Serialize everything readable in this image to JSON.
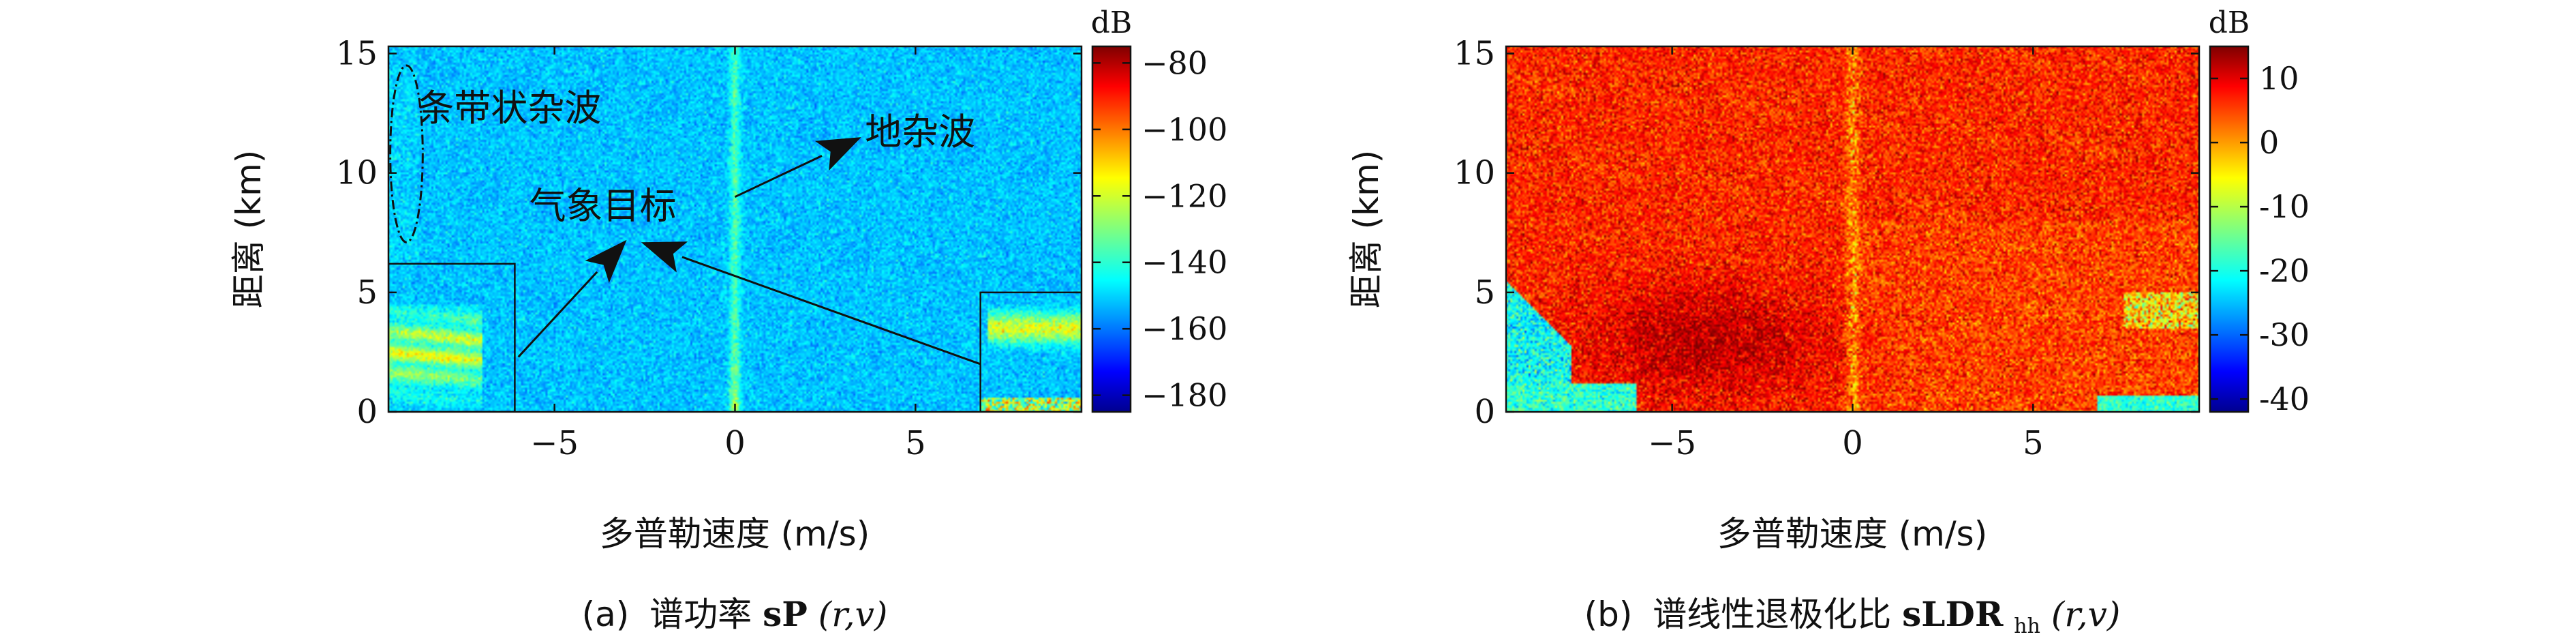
{
  "chart_data": [
    {
      "type": "heatmap",
      "panel_label": "(a)",
      "caption_prefix": "谱功率",
      "caption_symbol": "sP",
      "caption_args": "(r,v)",
      "xlabel": "多普勒速度 (m/s)",
      "ylabel": "距离 (km)",
      "xlim": [
        -9.6,
        9.6
      ],
      "ylim": [
        0,
        15.3
      ],
      "xticks": [
        -5,
        0,
        5
      ],
      "yticks": [
        0,
        5,
        10,
        15
      ],
      "colorbar": {
        "unit": "dB",
        "range": [
          -185,
          -75
        ],
        "ticks": [
          -80,
          -100,
          -120,
          -140,
          -160,
          -180
        ],
        "tick_labels": [
          "−80",
          "−100",
          "−120",
          "−140",
          "−160",
          "−180"
        ],
        "colormap": "jet"
      },
      "background_level_db": -150,
      "annotations": [
        {
          "text": "条带状杂波",
          "x": -8.8,
          "y": 12.7
        },
        {
          "text": "地杂波",
          "x": 3.6,
          "y": 11.7
        },
        {
          "text": "气象目标",
          "x": -5.7,
          "y": 8.6
        }
      ],
      "highlight_ellipse": {
        "cx": -9.1,
        "cy": 10.8,
        "rx": 0.45,
        "ry": 3.7
      },
      "highlight_boxes": [
        {
          "x0": -9.6,
          "x1": -6.1,
          "y0": 0,
          "y1": 6.2
        },
        {
          "x0": 6.8,
          "x1": 9.6,
          "y0": 0,
          "y1": 5.0
        }
      ],
      "arrows": [
        {
          "from": [
            0.0,
            9.0
          ],
          "to": [
            3.5,
            11.5
          ]
        },
        {
          "from": [
            -6.0,
            2.3
          ],
          "to": [
            -3.0,
            7.2
          ]
        },
        {
          "from": [
            6.8,
            2.0
          ],
          "to": [
            -2.6,
            7.1
          ]
        }
      ]
    },
    {
      "type": "heatmap",
      "panel_label": "(b)",
      "caption_prefix": "谱线性退极化比",
      "caption_symbol": "sLDR",
      "caption_subscript": "hh",
      "caption_args": "(r,v)",
      "xlabel": "多普勒速度 (m/s)",
      "ylabel": "距离 (km)",
      "xlim": [
        -9.6,
        9.6
      ],
      "ylim": [
        0,
        15.3
      ],
      "xticks": [
        -5,
        0,
        5
      ],
      "yticks": [
        0,
        5,
        10,
        15
      ],
      "colorbar": {
        "unit": "dB",
        "range": [
          -42,
          15
        ],
        "ticks": [
          10,
          0,
          -10,
          -20,
          -30,
          -40
        ],
        "tick_labels": [
          "10",
          "0",
          "-10",
          "-20",
          "-30",
          "-40"
        ],
        "colormap": "jet"
      },
      "background_level_db": 6
    }
  ],
  "icons": {
    "arrowhead": "arrowhead-icon"
  }
}
